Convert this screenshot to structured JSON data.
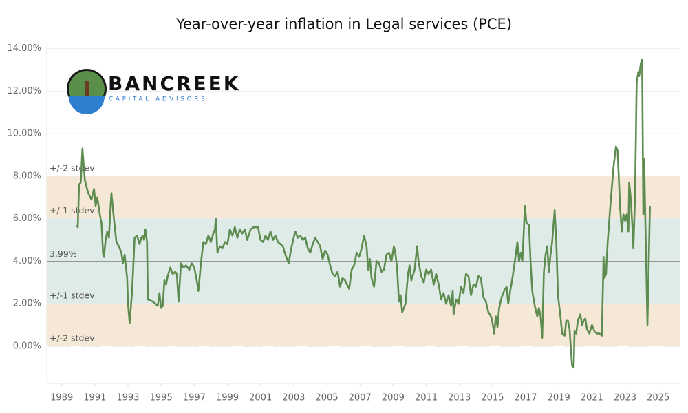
{
  "chart_data": {
    "type": "line",
    "title": "Year-over-year inflation in Legal services (PCE)",
    "logo_text": "BANCREEK",
    "logo_subtext": "CAPITAL ADVISORS",
    "color": "#5e8c50",
    "xlim": [
      1988.1,
      2026.3
    ],
    "xticks": [
      1989,
      1991,
      1993,
      1995,
      1997,
      1999,
      2001,
      2003,
      2005,
      2007,
      2009,
      2011,
      2013,
      2015,
      2017,
      2019,
      2021,
      2023,
      2025
    ],
    "ylim": [
      -1.75,
      14.15
    ],
    "yticks": [
      {
        "value": 0,
        "label": "0.00%"
      },
      {
        "value": 2,
        "label": "2.00%"
      },
      {
        "value": 4,
        "label": "4.00%"
      },
      {
        "value": 6,
        "label": "6.00%"
      },
      {
        "value": 8,
        "label": "8.00%"
      },
      {
        "value": 10,
        "label": "10.00%"
      },
      {
        "value": 12,
        "label": "12.00%"
      },
      {
        "value": 14,
        "label": "14.00%"
      }
    ],
    "grid": true,
    "mean": {
      "value": 3.99,
      "label": "3.99%"
    },
    "bands": [
      {
        "from": 6,
        "to": 8,
        "color": "#f5e8d7"
      },
      {
        "from": 2,
        "to": 6,
        "color": "#dfebe6"
      },
      {
        "from": 0,
        "to": 2,
        "color": "#f5e8d7"
      }
    ],
    "band_labels": [
      {
        "value": 8,
        "label": "+/-2 stdev"
      },
      {
        "value": 6,
        "label": "+/-1 stdev"
      },
      {
        "value": 2,
        "label": "+/-1 stdev"
      },
      {
        "value": 0,
        "label": "+/-2 stdev"
      }
    ],
    "x": [
      1989.9,
      1989.97,
      1990.05,
      1990.15,
      1990.25,
      1990.4,
      1990.6,
      1990.8,
      1990.95,
      1991.05,
      1991.15,
      1991.3,
      1991.4,
      1991.5,
      1991.55,
      1991.65,
      1991.75,
      1991.85,
      1991.95,
      1992.0,
      1992.15,
      1992.3,
      1992.45,
      1992.6,
      1992.7,
      1992.8,
      1992.95,
      1993.0,
      1993.1,
      1993.25,
      1993.4,
      1993.55,
      1993.7,
      1993.8,
      1993.9,
      1993.97,
      1994.05,
      1994.15,
      1994.2,
      1994.5,
      1994.8,
      1994.9,
      1995.0,
      1995.1,
      1995.2,
      1995.3,
      1995.4,
      1995.55,
      1995.7,
      1995.85,
      1995.95,
      1996.05,
      1996.2,
      1996.35,
      1996.5,
      1996.7,
      1996.85,
      1997.0,
      1997.15,
      1997.25,
      1997.4,
      1997.55,
      1997.7,
      1997.85,
      1998.0,
      1998.15,
      1998.25,
      1998.3,
      1998.4,
      1998.55,
      1998.7,
      1998.85,
      1999.0,
      1999.15,
      1999.3,
      1999.45,
      1999.6,
      1999.75,
      1999.9,
      2000.05,
      2000.2,
      2000.4,
      2000.6,
      2000.85,
      2001.0,
      2001.15,
      2001.3,
      2001.45,
      2001.6,
      2001.75,
      2001.9,
      2002.05,
      2002.2,
      2002.35,
      2002.5,
      2002.7,
      2002.85,
      2003.0,
      2003.1,
      2003.25,
      2003.4,
      2003.55,
      2003.7,
      2003.85,
      2004.0,
      2004.15,
      2004.3,
      2004.45,
      2004.6,
      2004.75,
      2004.9,
      2005.05,
      2005.2,
      2005.35,
      2005.5,
      2005.65,
      2005.8,
      2005.95,
      2006.1,
      2006.35,
      2006.5,
      2006.65,
      2006.8,
      2006.95,
      2007.1,
      2007.25,
      2007.4,
      2007.5,
      2007.6,
      2007.7,
      2007.85,
      2008.0,
      2008.15,
      2008.3,
      2008.45,
      2008.6,
      2008.75,
      2008.9,
      2009.05,
      2009.15,
      2009.25,
      2009.35,
      2009.45,
      2009.55,
      2009.65,
      2009.75,
      2009.9,
      2010.0,
      2010.1,
      2010.3,
      2010.45,
      2010.55,
      2010.7,
      2010.85,
      2011.0,
      2011.15,
      2011.3,
      2011.45,
      2011.6,
      2011.75,
      2011.9,
      2012.05,
      2012.2,
      2012.35,
      2012.5,
      2012.6,
      2012.65,
      2012.8,
      2012.95,
      2013.1,
      2013.25,
      2013.4,
      2013.55,
      2013.7,
      2013.85,
      2014.0,
      2014.15,
      2014.3,
      2014.45,
      2014.6,
      2014.75,
      2014.85,
      2014.95,
      2015.0,
      2015.1,
      2015.2,
      2015.3,
      2015.4,
      2015.55,
      2015.7,
      2015.85,
      2015.95,
      2016.05,
      2016.2,
      2016.35,
      2016.5,
      2016.6,
      2016.7,
      2016.8,
      2016.9,
      2016.95,
      2017.05,
      2017.2,
      2017.3,
      2017.4,
      2017.55,
      2017.7,
      2017.8,
      2017.9,
      2018.0,
      2018.1,
      2018.2,
      2018.3,
      2018.4,
      2018.5,
      2018.6,
      2018.75,
      2018.85,
      2018.95,
      2019.1,
      2019.2,
      2019.35,
      2019.45,
      2019.55,
      2019.65,
      2019.8,
      2019.9,
      2019.95,
      2020.05,
      2020.15,
      2020.3,
      2020.4,
      2020.5,
      2020.6,
      2020.7,
      2020.85,
      2021.0,
      2021.15,
      2021.3,
      2021.45,
      2021.6,
      2021.7,
      2021.75,
      2021.85,
      2021.95,
      2022.1,
      2022.3,
      2022.45,
      2022.55,
      2022.7,
      2022.8,
      2022.9,
      2023.0,
      2023.1,
      2023.2,
      2023.25,
      2023.35,
      2023.45,
      2023.5,
      2023.6,
      2023.7,
      2023.8,
      2023.85,
      2023.95,
      2024.03,
      2024.1,
      2024.15,
      2024.22,
      2024.35,
      2024.5
    ],
    "values": [
      5.7,
      5.6,
      7.6,
      7.7,
      9.3,
      7.8,
      7.2,
      6.9,
      7.4,
      6.6,
      7.0,
      6.2,
      5.8,
      4.3,
      4.2,
      5.0,
      5.4,
      5.1,
      6.6,
      7.2,
      6.0,
      4.9,
      4.7,
      4.4,
      3.9,
      4.3,
      3.2,
      2.0,
      1.1,
      2.6,
      5.1,
      5.2,
      4.8,
      5.1,
      5.2,
      5.0,
      5.5,
      4.9,
      2.2,
      2.1,
      1.9,
      2.5,
      1.8,
      1.9,
      3.1,
      2.9,
      3.3,
      3.7,
      3.4,
      3.5,
      3.4,
      2.1,
      3.9,
      3.7,
      3.8,
      3.6,
      3.9,
      3.7,
      3.1,
      2.6,
      3.9,
      4.9,
      4.8,
      5.2,
      4.9,
      5.3,
      5.5,
      6.0,
      4.4,
      4.7,
      4.6,
      4.9,
      4.8,
      5.5,
      5.2,
      5.6,
      5.1,
      5.5,
      5.3,
      5.5,
      5.0,
      5.5,
      5.6,
      5.6,
      5.0,
      4.9,
      5.2,
      5.0,
      5.4,
      5.0,
      5.2,
      4.9,
      4.8,
      4.7,
      4.3,
      3.9,
      4.6,
      5.1,
      5.4,
      5.1,
      5.2,
      5.0,
      5.1,
      4.6,
      4.4,
      4.8,
      5.1,
      4.9,
      4.7,
      4.1,
      4.5,
      4.3,
      3.8,
      3.4,
      3.3,
      3.5,
      2.8,
      3.2,
      3.1,
      2.7,
      3.6,
      3.8,
      4.4,
      4.2,
      4.6,
      5.2,
      4.7,
      3.6,
      4.1,
      3.2,
      2.8,
      4.0,
      3.9,
      3.5,
      3.6,
      4.3,
      4.4,
      4.0,
      4.7,
      4.3,
      3.6,
      2.1,
      2.4,
      1.6,
      1.8,
      2.0,
      3.4,
      3.8,
      3.1,
      3.6,
      4.7,
      3.9,
      3.3,
      3.0,
      3.6,
      3.4,
      3.6,
      2.9,
      3.4,
      2.9,
      2.2,
      2.5,
      2.0,
      2.4,
      1.9,
      2.6,
      1.5,
      2.2,
      2.0,
      2.8,
      2.5,
      3.4,
      3.3,
      2.4,
      2.9,
      2.8,
      3.3,
      3.2,
      2.3,
      2.1,
      1.6,
      1.5,
      1.3,
      1.1,
      0.6,
      1.4,
      0.9,
      1.8,
      2.3,
      2.6,
      2.8,
      2.0,
      2.5,
      3.2,
      4.0,
      4.9,
      4.0,
      4.4,
      4.0,
      5.6,
      6.6,
      5.8,
      5.7,
      3.9,
      2.6,
      1.9,
      1.4,
      1.8,
      1.4,
      0.4,
      3.5,
      4.3,
      4.7,
      3.5,
      4.3,
      4.9,
      6.4,
      4.9,
      2.4,
      1.4,
      0.6,
      0.5,
      1.2,
      1.2,
      0.8,
      -0.9,
      -1.0,
      0.7,
      0.6,
      1.2,
      1.5,
      1.0,
      1.2,
      1.3,
      0.8,
      0.6,
      1.0,
      0.7,
      0.6,
      0.6,
      0.5,
      4.2,
      3.2,
      3.4,
      4.9,
      6.5,
      8.4,
      9.4,
      9.2,
      6.5,
      5.4,
      6.2,
      5.9,
      6.2,
      5.4,
      7.7,
      6.9,
      5.5,
      4.6,
      7.0,
      12.4,
      12.9,
      12.7,
      13.3,
      13.5,
      6.2,
      8.8,
      6.0,
      1.0,
      6.6
    ]
  }
}
